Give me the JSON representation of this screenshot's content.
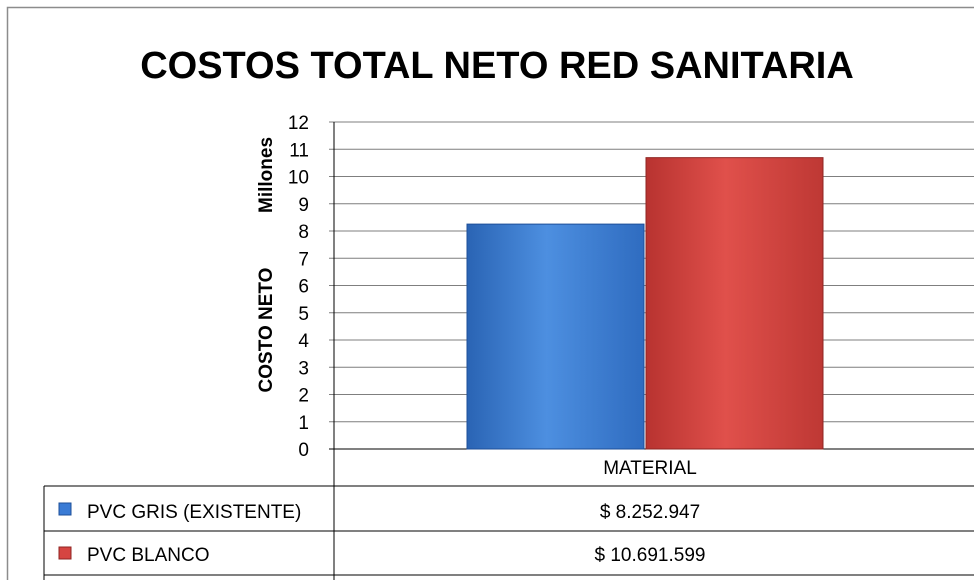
{
  "chart_data": {
    "type": "bar",
    "title": "COSTOS TOTAL NETO RED SANITARIA",
    "ylabel": "COSTO NETO",
    "yunit": "Millones",
    "categories": [
      "MATERIAL"
    ],
    "series": [
      {
        "name": "PVC GRIS (EXISTENTE)",
        "values": [
          8.252947
        ],
        "label": "$ 8.252.947",
        "color": "#3a7bd5"
      },
      {
        "name": "PVC BLANCO",
        "values": [
          10.691599
        ],
        "label": "$ 10.691.599",
        "color": "#d64541"
      }
    ],
    "ylim": [
      0,
      12
    ],
    "yticks": [
      "0",
      "1",
      "2",
      "3",
      "4",
      "5",
      "6",
      "7",
      "8",
      "9",
      "10",
      "11",
      "12"
    ],
    "grid": true,
    "legend": "data-table"
  }
}
